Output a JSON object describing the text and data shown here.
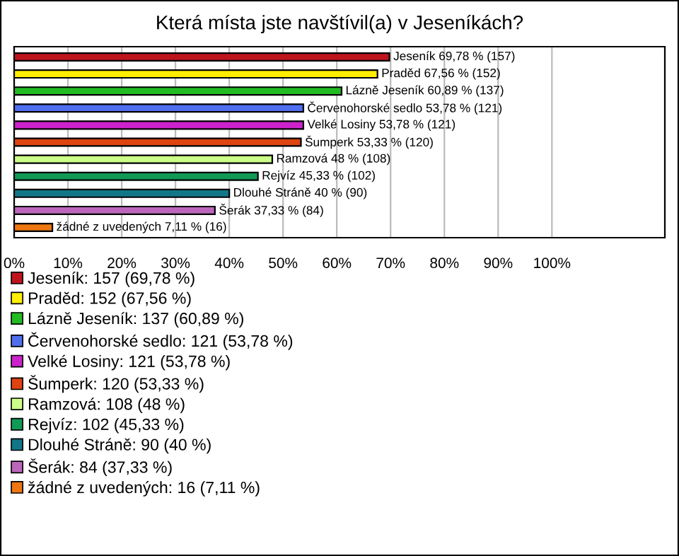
{
  "chart_data": {
    "type": "bar",
    "orientation": "horizontal",
    "title": "Která místa jste navštívil(a) v Jeseníkách?",
    "categories": [
      null,
      null,
      null,
      null,
      null,
      null,
      null,
      null,
      null,
      null,
      null
    ],
    "series": [
      {
        "name": "Jeseník: 157 (69,78 %)",
        "color": "#c0141c",
        "values": [
          69.78,
          null,
          null,
          null,
          null,
          null,
          null,
          null,
          null,
          null,
          null
        ],
        "value_labels": [
          "Jeseník 69,78 % (157)",
          null,
          null,
          null,
          null,
          null,
          null,
          null,
          null,
          null,
          null
        ]
      },
      {
        "name": "Praděd: 152 (67,56 %)",
        "color": "#ffee00",
        "values": [
          null,
          67.56,
          null,
          null,
          null,
          null,
          null,
          null,
          null,
          null,
          null
        ],
        "value_labels": [
          null,
          "Praděd 67,56 % (152)",
          null,
          null,
          null,
          null,
          null,
          null,
          null,
          null,
          null
        ]
      },
      {
        "name": "Lázně Jeseník: 137 (60,89 %)",
        "color": "#22bb22",
        "values": [
          null,
          null,
          60.89,
          null,
          null,
          null,
          null,
          null,
          null,
          null,
          null
        ],
        "value_labels": [
          null,
          null,
          "Lázně Jeseník 60,89 % (137)",
          null,
          null,
          null,
          null,
          null,
          null,
          null,
          null
        ]
      },
      {
        "name": "Červenohorské sedlo: 121 (53,78 %)",
        "color": "#4f6fef",
        "values": [
          null,
          null,
          null,
          53.78,
          null,
          null,
          null,
          null,
          null,
          null,
          null
        ],
        "value_labels": [
          null,
          null,
          null,
          "Červenohorské sedlo 53,78 % (121)",
          null,
          null,
          null,
          null,
          null,
          null,
          null
        ]
      },
      {
        "name": "Velké Losiny: 121 (53,78 %)",
        "color": "#cc22cc",
        "values": [
          null,
          null,
          null,
          null,
          53.78,
          null,
          null,
          null,
          null,
          null,
          null
        ],
        "value_labels": [
          null,
          null,
          null,
          null,
          "Velké Losiny 53,78 % (121)",
          null,
          null,
          null,
          null,
          null,
          null
        ]
      },
      {
        "name": "Šumperk: 120 (53,33 %)",
        "color": "#dd4411",
        "values": [
          null,
          null,
          null,
          null,
          null,
          53.33,
          null,
          null,
          null,
          null,
          null
        ],
        "value_labels": [
          null,
          null,
          null,
          null,
          null,
          "Šumperk 53,33 % (120)",
          null,
          null,
          null,
          null,
          null
        ]
      },
      {
        "name": "Ramzová: 108 (48 %)",
        "color": "#ccff88",
        "values": [
          null,
          null,
          null,
          null,
          null,
          null,
          48,
          null,
          null,
          null,
          null
        ],
        "value_labels": [
          null,
          null,
          null,
          null,
          null,
          null,
          "Ramzová 48 % (108)",
          null,
          null,
          null,
          null
        ]
      },
      {
        "name": "Rejvíz: 102 (45,33 %)",
        "color": "#119955",
        "values": [
          null,
          null,
          null,
          null,
          null,
          null,
          null,
          45.33,
          null,
          null,
          null
        ],
        "value_labels": [
          null,
          null,
          null,
          null,
          null,
          null,
          null,
          "Rejvíz 45,33 % (102)",
          null,
          null,
          null
        ]
      },
      {
        "name": "Dlouhé Stráně: 90 (40 %)",
        "color": "#117788",
        "values": [
          null,
          null,
          null,
          null,
          null,
          null,
          null,
          null,
          40,
          null,
          null
        ],
        "value_labels": [
          null,
          null,
          null,
          null,
          null,
          null,
          null,
          null,
          "Dlouhé Stráně 40 % (90)",
          null,
          null
        ]
      },
      {
        "name": "Šerák: 84 (37,33 %)",
        "color": "#bb66bb",
        "values": [
          null,
          null,
          null,
          null,
          null,
          null,
          null,
          null,
          null,
          37.33,
          null
        ],
        "value_labels": [
          null,
          null,
          null,
          null,
          null,
          null,
          null,
          null,
          null,
          "Šerák 37,33 % (84)",
          null
        ]
      },
      {
        "name": "žádné z uvedených: 16 (7,11 %)",
        "color": "#ee7711",
        "values": [
          null,
          null,
          null,
          null,
          null,
          null,
          null,
          null,
          null,
          null,
          7.11
        ],
        "value_labels": [
          null,
          null,
          null,
          null,
          null,
          null,
          null,
          null,
          null,
          null,
          "žádné z uvedených 7,11 % (16)"
        ]
      }
    ],
    "xlim": [
      0,
      121
    ],
    "xticks": [
      {
        "value": 0,
        "label": "0%"
      },
      {
        "value": 10,
        "label": "10%"
      },
      {
        "value": 20,
        "label": "20%"
      },
      {
        "value": 30,
        "label": "30%"
      },
      {
        "value": 40,
        "label": "40%"
      },
      {
        "value": 50,
        "label": "50%"
      },
      {
        "value": 60,
        "label": "60%"
      },
      {
        "value": 70,
        "label": "70%"
      },
      {
        "value": 80,
        "label": "80%"
      },
      {
        "value": 90,
        "label": "90%"
      },
      {
        "value": 100,
        "label": "100%"
      }
    ],
    "grid": "x",
    "legend": "bottom",
    "tick_labels": "x"
  }
}
